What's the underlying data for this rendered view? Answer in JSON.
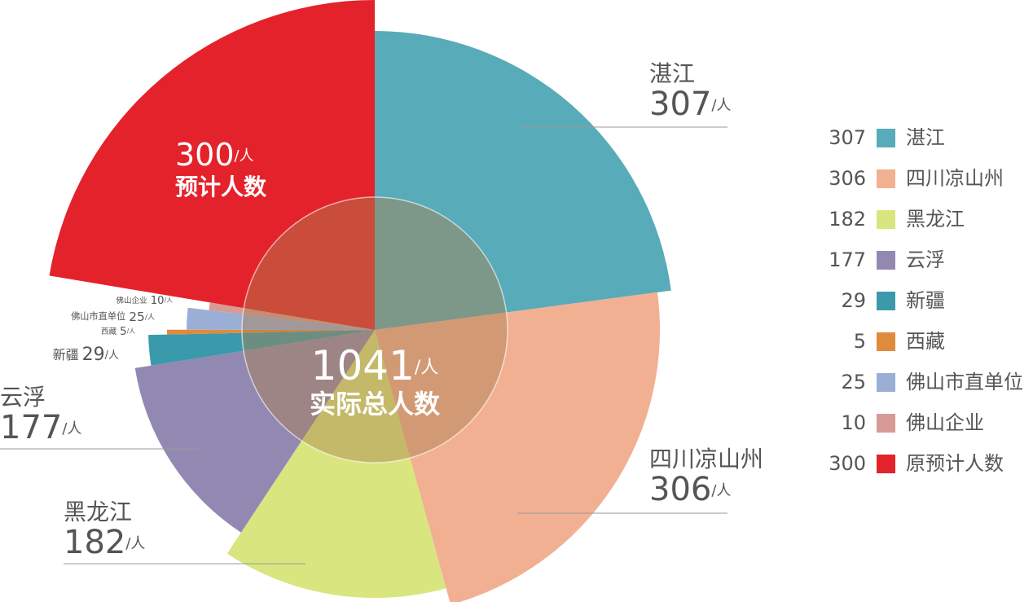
{
  "chart_data": {
    "type": "pie",
    "categories": [
      "湛江",
      "四川凉山州",
      "黑龙江",
      "云浮",
      "新疆",
      "西藏",
      "佛山市直单位",
      "佛山企业",
      "原预计人数"
    ],
    "values": [
      307,
      306,
      182,
      177,
      29,
      5,
      25,
      10,
      300
    ],
    "colors": [
      "#58abb9",
      "#f2b093",
      "#d9e57f",
      "#9289b3",
      "#3a9aab",
      "#e08b3c",
      "#9aaed6",
      "#d89a94",
      "#e4222b"
    ],
    "unit": "/人",
    "total": 1041,
    "total_label": "实际总人数",
    "highlight_label": "预计人数"
  }
}
